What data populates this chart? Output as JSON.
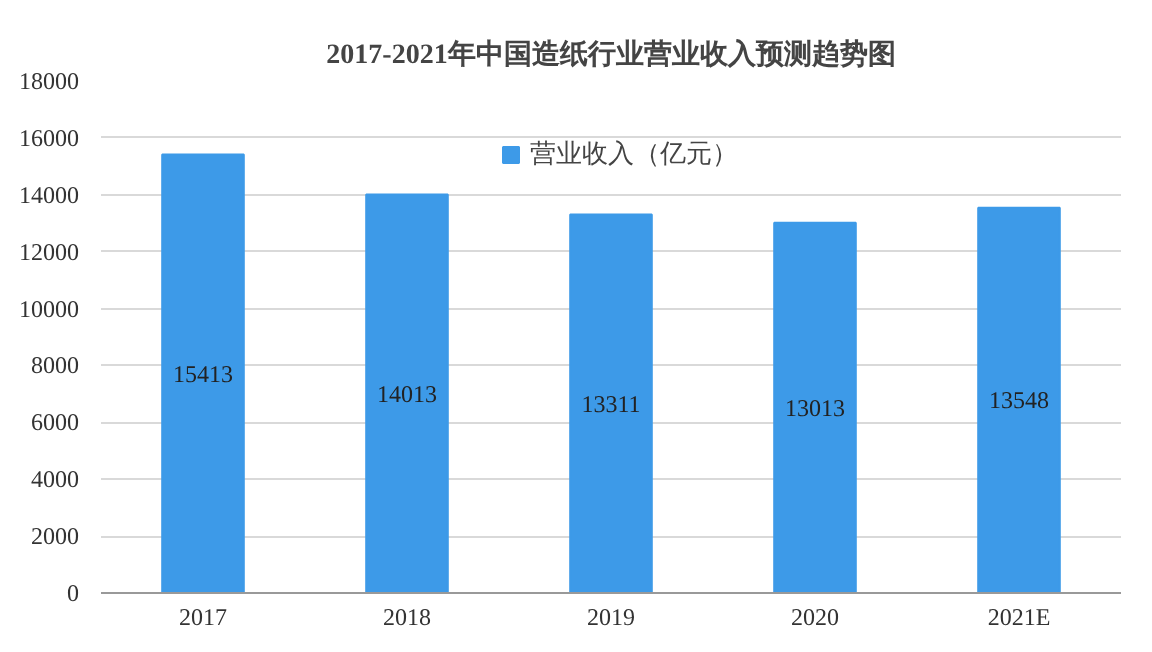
{
  "chart_data": {
    "type": "bar",
    "title": "2017-2021年中国造纸行业营业收入预测趋势图",
    "categories": [
      "2017",
      "2018",
      "2019",
      "2020",
      "2021E"
    ],
    "series": [
      {
        "name": "营业收入（亿元）",
        "color": "#3d9ae8",
        "values": [
          15413,
          14013,
          13311,
          13013,
          13548
        ]
      }
    ],
    "ylim": [
      0,
      18000
    ],
    "yticks": [
      0,
      2000,
      4000,
      6000,
      8000,
      10000,
      12000,
      14000,
      16000,
      18000
    ],
    "grid": "y",
    "legend": "top",
    "data_labels": true
  }
}
